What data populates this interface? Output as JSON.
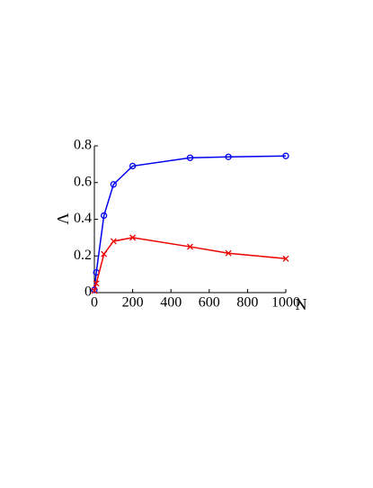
{
  "chart_data": {
    "type": "line",
    "xlabel": "N",
    "ylabel": "Λ",
    "x": [
      0,
      10,
      50,
      100,
      200,
      500,
      700,
      1000
    ],
    "series": [
      {
        "color": "#0000ee",
        "marker": "circle",
        "values": [
          0.015,
          0.11,
          0.42,
          0.59,
          0.69,
          0.735,
          0.74,
          0.745
        ]
      },
      {
        "color": "#ee0000",
        "marker": "x",
        "values": [
          0.01,
          0.05,
          0.21,
          0.28,
          0.3,
          0.25,
          0.215,
          0.185
        ]
      }
    ],
    "xlim": [
      0,
      1000
    ],
    "xticks": [
      0,
      200,
      400,
      600,
      800,
      1000
    ],
    "ylim": [
      0,
      0.8
    ],
    "yticks": [
      0,
      0.2,
      0.4,
      0.6,
      0.8
    ]
  }
}
